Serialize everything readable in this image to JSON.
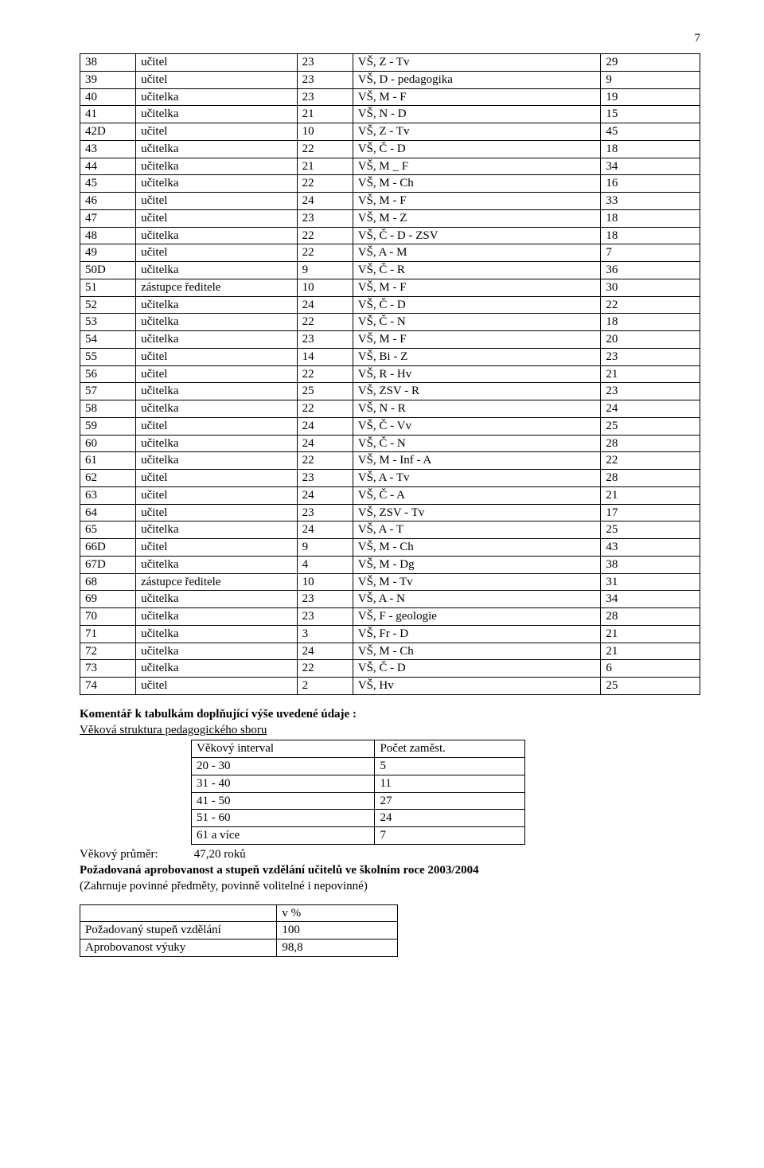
{
  "page_number": "7",
  "main_table": {
    "rows": [
      [
        "38",
        "učitel",
        "23",
        "VŠ, Z - Tv",
        "29"
      ],
      [
        "39",
        "učitel",
        "23",
        "VŠ, D - pedagogika",
        "9"
      ],
      [
        "40",
        "učitelka",
        "23",
        "VŠ, M - F",
        "19"
      ],
      [
        "41",
        "učitelka",
        "21",
        "VŠ, N - D",
        "15"
      ],
      [
        "42D",
        "učitel",
        "10",
        "VŠ, Z - Tv",
        "45"
      ],
      [
        "43",
        "učitelka",
        "22",
        "VŠ, Č - D",
        "18"
      ],
      [
        "44",
        "učitelka",
        "21",
        "VŠ, M _ F",
        "34"
      ],
      [
        "45",
        "učitelka",
        "22",
        "VŠ, M - Ch",
        "16"
      ],
      [
        "46",
        "učitel",
        "24",
        "VŠ, M - F",
        "33"
      ],
      [
        "47",
        "učitel",
        "23",
        "VŠ, M - Z",
        "18"
      ],
      [
        "48",
        "učitelka",
        "22",
        "VŠ, Č - D - ZSV",
        "18"
      ],
      [
        "49",
        "učitel",
        "22",
        "VŠ, A - M",
        "7"
      ],
      [
        "50D",
        "učitelka",
        "9",
        "VŠ, Č - R",
        "36"
      ],
      [
        "51",
        "zástupce ředitele",
        "10",
        "VŠ, M - F",
        "30"
      ],
      [
        "52",
        "učitelka",
        "24",
        "VŠ, Č - D",
        "22"
      ],
      [
        "53",
        "učitelka",
        "22",
        "VŠ, Č - N",
        "18"
      ],
      [
        "54",
        "učitelka",
        "23",
        "VŠ, M - F",
        "20"
      ],
      [
        "55",
        "učitel",
        "14",
        "VŠ, Bi - Z",
        "23"
      ],
      [
        "56",
        "učitel",
        "22",
        "VŠ, R - Hv",
        "21"
      ],
      [
        "57",
        "učitelka",
        "25",
        "VŠ, ZSV - R",
        "23"
      ],
      [
        "58",
        "učitelka",
        "22",
        "VŠ, N - R",
        "24"
      ],
      [
        "59",
        "učitel",
        "24",
        "VŠ, Č - Vv",
        "25"
      ],
      [
        "60",
        "učitelka",
        "24",
        "VŠ, Č - N",
        "28"
      ],
      [
        "61",
        "učitelka",
        "22",
        "VŠ, M - Inf - A",
        "22"
      ],
      [
        "62",
        "učitel",
        "23",
        "VŠ, A - Tv",
        "28"
      ],
      [
        "63",
        "učitel",
        "24",
        "VŠ, Č - A",
        "21"
      ],
      [
        "64",
        "učitel",
        "23",
        "VŠ, ZSV - Tv",
        "17"
      ],
      [
        "65",
        "učitelka",
        "24",
        "VŠ, A - T",
        "25"
      ],
      [
        "66D",
        "učitel",
        "9",
        "VŠ, M - Ch",
        "43"
      ],
      [
        "67D",
        "učitelka",
        "4",
        "VŠ, M - Dg",
        "38"
      ],
      [
        "68",
        "zástupce ředitele",
        "10",
        "VŠ, M - Tv",
        "31"
      ],
      [
        "69",
        "učitelka",
        "23",
        "VŠ, A - N",
        "34"
      ],
      [
        "70",
        "učitelka",
        "23",
        "VŠ, F - geologie",
        "28"
      ],
      [
        "71",
        "učitelka",
        "3",
        "VŠ, Fr - D",
        "21"
      ],
      [
        "72",
        "učitelka",
        "24",
        "VŠ, M - Ch",
        "21"
      ],
      [
        "73",
        "učitelka",
        "22",
        "VŠ, Č - D",
        "6"
      ],
      [
        "74",
        "učitel",
        "2",
        "VŠ, Hv",
        "25"
      ]
    ]
  },
  "commentary": {
    "heading": "Komentář k tabulkám doplňující výše uvedené údaje :",
    "subheading": "Věková struktura pedagogického sboru"
  },
  "age_table": {
    "header": [
      "Věkový interval",
      "Počet zaměst."
    ],
    "rows": [
      [
        "20 - 30",
        "5"
      ],
      [
        "31 - 40",
        "11"
      ],
      [
        "41 - 50",
        "27"
      ],
      [
        "51 - 60",
        "24"
      ],
      [
        "61 a více",
        "7"
      ]
    ]
  },
  "average": {
    "label": "Věkový průměr:",
    "value": "47,20 roků"
  },
  "requirement": {
    "line1": "Požadovaná aprobovanost a stupeň vzdělání učitelů ve školním roce 2003/2004",
    "line2": "(Zahrnuje povinné předměty, povinně volitelné i nepovinné)"
  },
  "pct_table": {
    "header": [
      "",
      "v %"
    ],
    "rows": [
      [
        "Požadovaný stupeň vzdělání",
        "100"
      ],
      [
        "Aprobovanost výuky",
        "98,8"
      ]
    ]
  }
}
